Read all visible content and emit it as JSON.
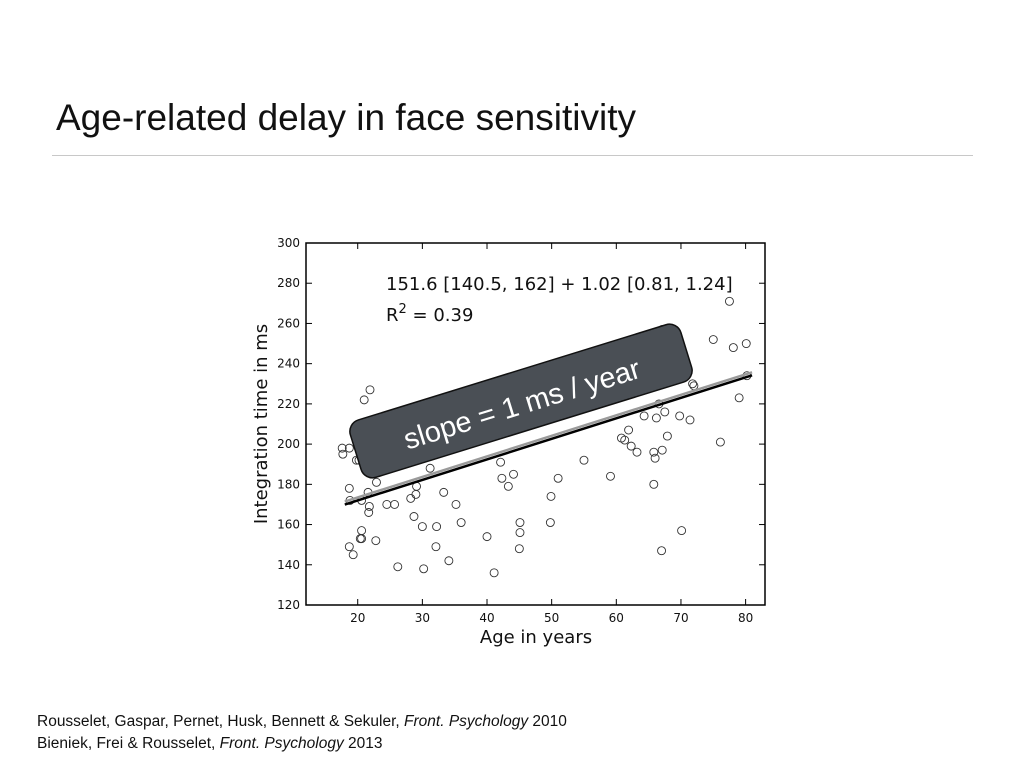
{
  "slide": {
    "title": "Age-related delay in face sensitivity"
  },
  "references": [
    {
      "authors": "Rousselet, Gaspar, Pernet, Husk, Bennett & Sekuler, ",
      "journal": "Front. Psychology",
      "year": " 2010"
    },
    {
      "authors": "Bieniek, Frei & Rousselet, ",
      "journal": "Front. Psychology",
      "year": " 2013"
    }
  ],
  "callout": {
    "text": "slope = 1 ms / year"
  },
  "colors": {
    "points": "#333333",
    "fit_line": "#000000",
    "fit_line_shadow": "#9a9a9a",
    "callout_fill": "#4a4f55",
    "callout_text": "#ffffff"
  },
  "chart_data": {
    "type": "scatter",
    "title": "",
    "xlabel": "Age in years",
    "ylabel": "Integration time in ms",
    "xlim": [
      12,
      83
    ],
    "ylim": [
      120,
      300
    ],
    "xticks": [
      20,
      30,
      40,
      50,
      60,
      70,
      80
    ],
    "yticks": [
      120,
      140,
      160,
      180,
      200,
      220,
      240,
      260,
      280,
      300
    ],
    "grid": false,
    "annotation": {
      "equation": "151.6 [140.5, 162] + 1.02 [0.81, 1.24]",
      "r2_label": "R",
      "r2_sup": "2",
      "r2_value": " = 0.39"
    },
    "fit": {
      "intercept": 151.6,
      "slope": 1.02,
      "x_start": 18,
      "x_end": 81
    },
    "points": [
      [
        17.6,
        198
      ],
      [
        18.7,
        198
      ],
      [
        17.7,
        195
      ],
      [
        19.8,
        192
      ],
      [
        20.2,
        192
      ],
      [
        21.3,
        194
      ],
      [
        21.0,
        222
      ],
      [
        21.9,
        227
      ],
      [
        22.1,
        211
      ],
      [
        21.6,
        176
      ],
      [
        21.8,
        169
      ],
      [
        21.7,
        166
      ],
      [
        20.6,
        157
      ],
      [
        20.4,
        153
      ],
      [
        20.6,
        153
      ],
      [
        19.3,
        145
      ],
      [
        18.7,
        149
      ],
      [
        18.7,
        178
      ],
      [
        18.8,
        172
      ],
      [
        20.6,
        172
      ],
      [
        22.9,
        181
      ],
      [
        24.5,
        170
      ],
      [
        25.7,
        170
      ],
      [
        22.8,
        152
      ],
      [
        26.2,
        139
      ],
      [
        28.2,
        173
      ],
      [
        29.1,
        179
      ],
      [
        29.0,
        175
      ],
      [
        28.7,
        164
      ],
      [
        30.0,
        159
      ],
      [
        30.2,
        138
      ],
      [
        31.2,
        188
      ],
      [
        32.1,
        149
      ],
      [
        32.2,
        159
      ],
      [
        33.3,
        176
      ],
      [
        34.1,
        142
      ],
      [
        35.2,
        170
      ],
      [
        36.0,
        161
      ],
      [
        40.0,
        154
      ],
      [
        41.1,
        136
      ],
      [
        42.1,
        191
      ],
      [
        42.3,
        183
      ],
      [
        43.3,
        179
      ],
      [
        44.1,
        185
      ],
      [
        45.1,
        161
      ],
      [
        45.1,
        156
      ],
      [
        45.0,
        148
      ],
      [
        49.9,
        174
      ],
      [
        49.8,
        161
      ],
      [
        51.0,
        183
      ],
      [
        55.0,
        192
      ],
      [
        59.1,
        184
      ],
      [
        60.8,
        203
      ],
      [
        61.3,
        202
      ],
      [
        61.9,
        207
      ],
      [
        62.3,
        199
      ],
      [
        63.2,
        196
      ],
      [
        64.3,
        214
      ],
      [
        65.8,
        196
      ],
      [
        66.0,
        193
      ],
      [
        65.8,
        180
      ],
      [
        66.2,
        213
      ],
      [
        66.6,
        220
      ],
      [
        67.1,
        197
      ],
      [
        67.5,
        216
      ],
      [
        67.9,
        204
      ],
      [
        69.8,
        214
      ],
      [
        70.1,
        157
      ],
      [
        67.0,
        147
      ],
      [
        63.9,
        253
      ],
      [
        67.1,
        257
      ],
      [
        71.4,
        212
      ],
      [
        72.0,
        229
      ],
      [
        71.8,
        230
      ],
      [
        75.0,
        252
      ],
      [
        76.1,
        201
      ],
      [
        77.5,
        271
      ],
      [
        78.1,
        248
      ],
      [
        79.0,
        223
      ],
      [
        80.1,
        250
      ],
      [
        80.2,
        234
      ]
    ]
  }
}
